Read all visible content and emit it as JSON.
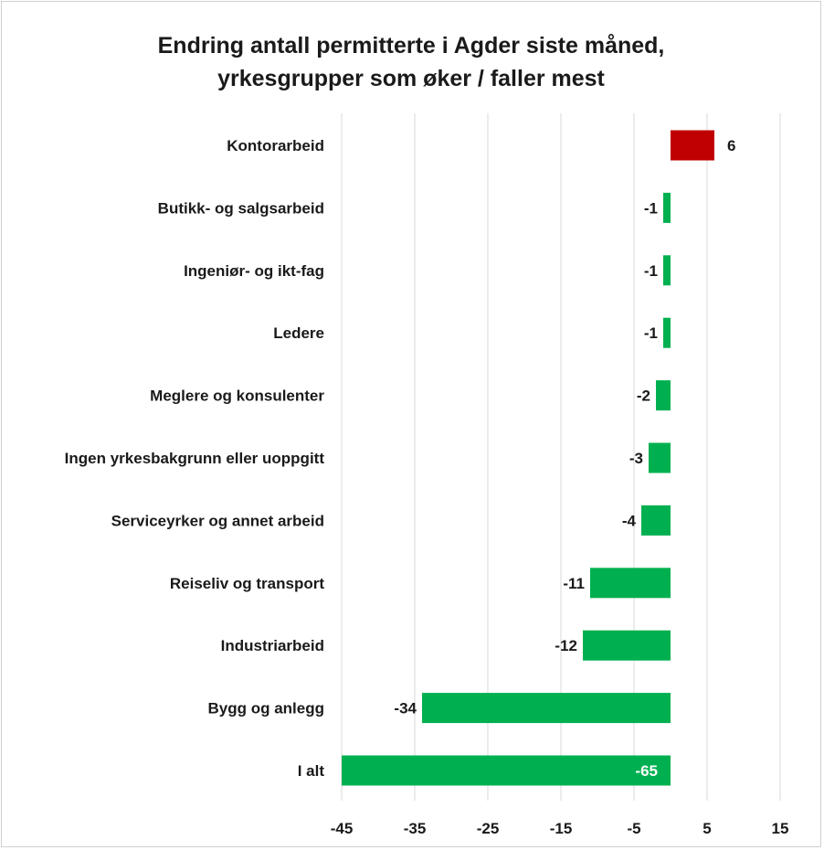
{
  "chart_data": {
    "type": "bar",
    "orientation": "horizontal",
    "title_lines": [
      "Endring antall permitterte i Agder siste måned,",
      "yrkesgrupper som øker / faller mest"
    ],
    "categories": [
      "Kontorarbeid",
      "Butikk- og salgsarbeid",
      "Ingeniør- og ikt-fag",
      "Ledere",
      "Meglere og konsulenter",
      "Ingen yrkesbakgrunn eller uoppgitt",
      "Serviceyrker og annet arbeid",
      "Reiseliv og transport",
      "Industriarbeid",
      "Bygg og anlegg",
      "I alt"
    ],
    "values": [
      6,
      -1,
      -1,
      -1,
      -2,
      -3,
      -4,
      -11,
      -12,
      -34,
      -65
    ],
    "value_labels": [
      "6",
      "-1",
      "-1",
      "-1",
      "-2",
      "-3",
      "-4",
      "-11",
      "-12",
      "-34",
      "-65"
    ],
    "xlim": [
      -45,
      15
    ],
    "xticks": [
      -45,
      -35,
      -25,
      -15,
      -5,
      5,
      15
    ],
    "xtick_labels": [
      "-45",
      "-35",
      "-25",
      "-15",
      "-5",
      "5",
      "15"
    ],
    "grid": true,
    "colors": {
      "positive": "#c00000",
      "negative": "#00b050",
      "grid": "#d9d9d9"
    }
  }
}
